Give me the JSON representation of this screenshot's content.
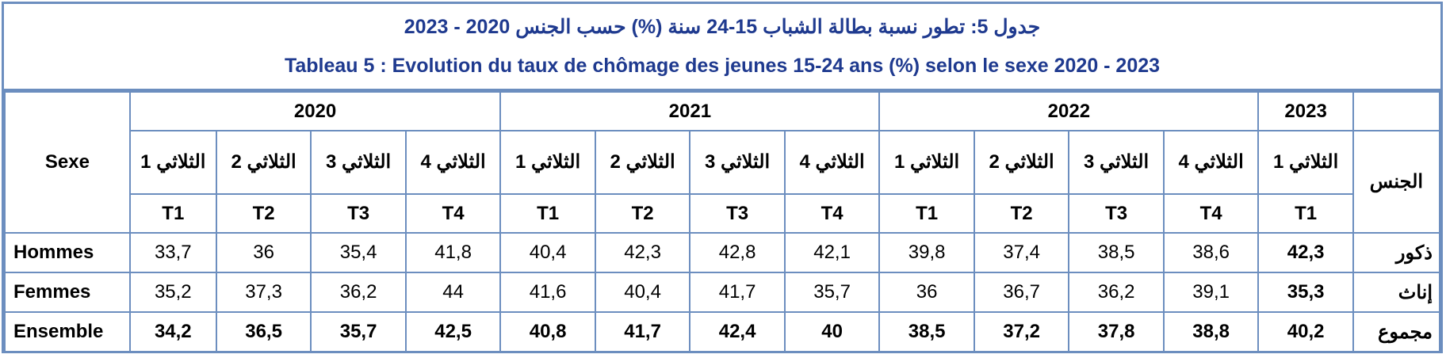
{
  "title_ar": "جدول 5: تطور نسبة بطالة الشباب 15-24 سنة (%) حسب الجنس 2020 - 2023",
  "title_fr": "Tableau 5 : Evolution du taux de chômage des jeunes 15-24 ans (%) selon le sexe 2020 - 2023",
  "header": {
    "sexe_label": "Sexe",
    "jins_label": "الجنس",
    "years": [
      {
        "label": "2020",
        "span": 4
      },
      {
        "label": "2021",
        "span": 4
      },
      {
        "label": "2022",
        "span": 4
      },
      {
        "label": "2023",
        "span": 1
      }
    ],
    "quarters_ar": [
      "الثلاثي 1",
      "الثلاثي 2",
      "الثلاثي 3",
      "الثلاثي 4",
      "الثلاثي 1",
      "الثلاثي 2",
      "الثلاثي 3",
      "الثلاثي 4",
      "الثلاثي 1",
      "الثلاثي 2",
      "الثلاثي 3",
      "الثلاثي 4",
      "الثلاثي 1"
    ],
    "quarters_code": [
      "T1",
      "T2",
      "T3",
      "T4",
      "T1",
      "T2",
      "T3",
      "T4",
      "T1",
      "T2",
      "T3",
      "T4",
      "T1"
    ]
  },
  "rows": [
    {
      "label_fr": "Hommes",
      "label_ar": "ذكور",
      "values": [
        "33,7",
        "36",
        "35,4",
        "41,8",
        "40,4",
        "42,3",
        "42,8",
        "42,1",
        "39,8",
        "37,4",
        "38,5",
        "38,6",
        "42,3"
      ],
      "bold_row": false
    },
    {
      "label_fr": "Femmes",
      "label_ar": "إناث",
      "values": [
        "35,2",
        "37,3",
        "36,2",
        "44",
        "41,6",
        "40,4",
        "41,7",
        "35,7",
        "36",
        "36,7",
        "36,2",
        "39,1",
        "35,3"
      ],
      "bold_row": false
    },
    {
      "label_fr": "Ensemble",
      "label_ar": "مجموع",
      "values": [
        "34,2",
        "36,5",
        "35,7",
        "42,5",
        "40,8",
        "41,7",
        "42,4",
        "40",
        "38,5",
        "37,2",
        "37,8",
        "38,8",
        "40,2"
      ],
      "bold_row": true
    }
  ],
  "colors": {
    "title_text": "#1f3a8f",
    "border": "#6c8ebf"
  }
}
